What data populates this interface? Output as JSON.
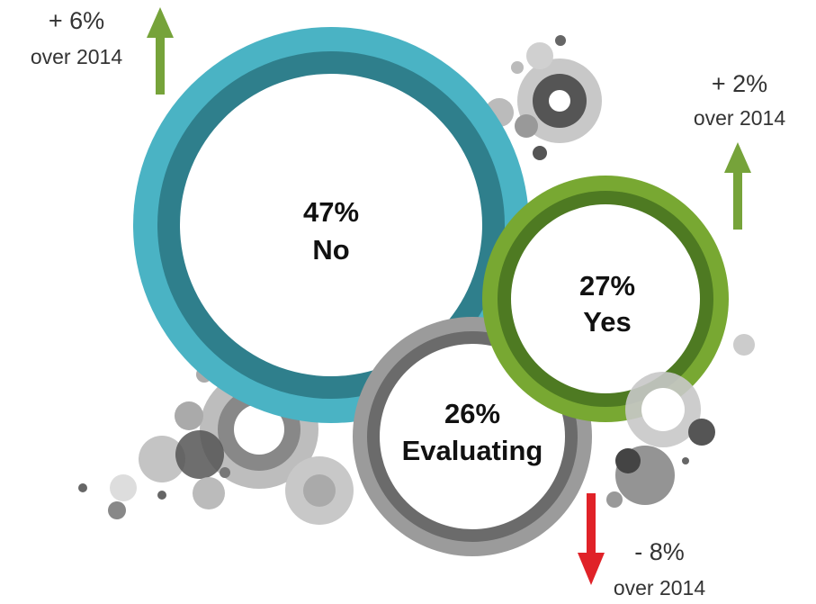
{
  "items": [
    {
      "percent": "47%",
      "label": "No",
      "change": "+ 6%",
      "change_note": "over 2014"
    },
    {
      "percent": "27%",
      "label": "Yes",
      "change": "+ 2%",
      "change_note": "over 2014"
    },
    {
      "percent": "26%",
      "label": "Evaluating",
      "change": "- 8%",
      "change_note": "over 2014"
    }
  ]
}
